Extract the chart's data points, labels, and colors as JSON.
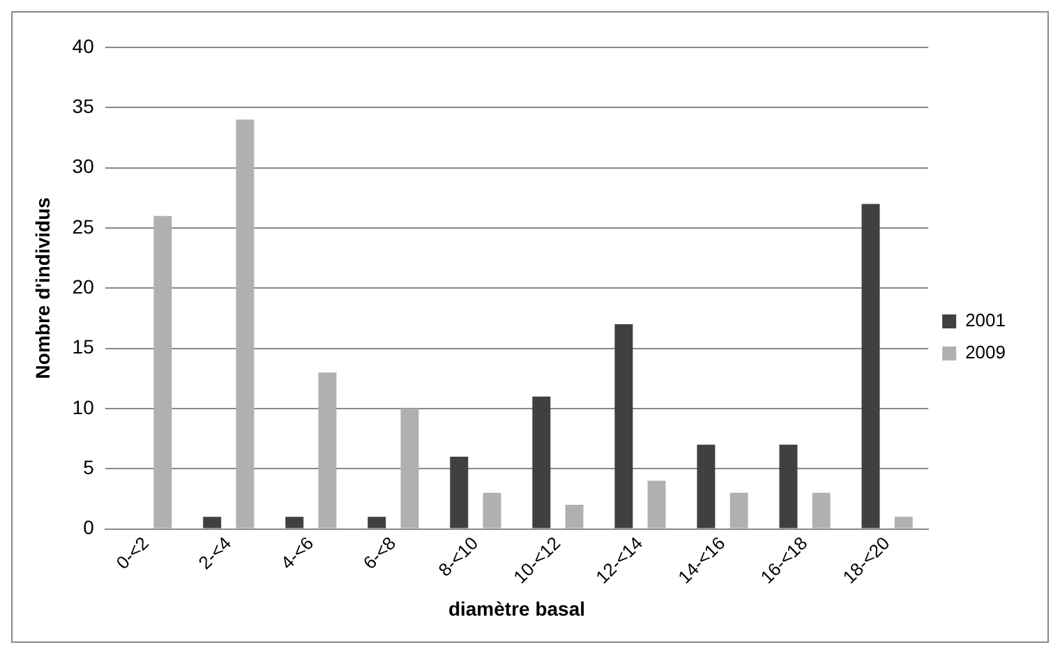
{
  "chart_data": {
    "type": "bar",
    "xlabel": "diamètre basal",
    "ylabel": "Nombre d'individus",
    "categories": [
      "0-<2",
      "2-<4",
      "4-<6",
      "6-<8",
      "8-<10",
      "10-<12",
      "12-<14",
      "14-<16",
      "16-<18",
      "18-<20"
    ],
    "series": [
      {
        "name": "2001",
        "color": "#404040",
        "values": [
          0,
          1,
          1,
          1,
          6,
          11,
          17,
          7,
          7,
          27
        ]
      },
      {
        "name": "2009",
        "color": "#b0b0b0",
        "values": [
          26,
          34,
          13,
          10,
          3,
          2,
          4,
          3,
          3,
          1
        ]
      }
    ],
    "ylim": [
      0,
      40
    ],
    "yticks": [
      0,
      5,
      10,
      15,
      20,
      25,
      30,
      35,
      40
    ],
    "grid": "y",
    "legend": "right"
  }
}
